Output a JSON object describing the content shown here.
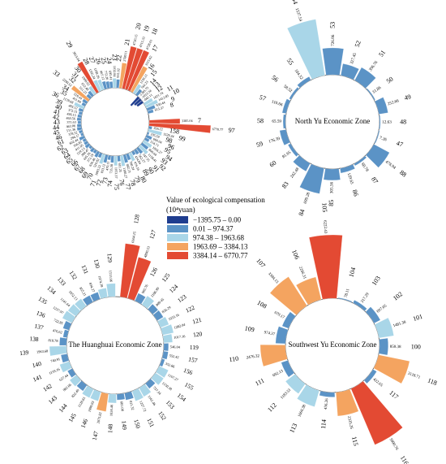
{
  "legend": {
    "title_line1": "Value of ecological compensation",
    "title_line2": "(10⁴yuan)",
    "classes": [
      {
        "label": "−1395.75 – 0.00",
        "color": "#1f3d8f"
      },
      {
        "label": "0.01 – 974.37",
        "color": "#5b93c6"
      },
      {
        "label": "974.38 – 1963.68",
        "color": "#a9d6e8"
      },
      {
        "label": "1963.69 – 3384.13",
        "color": "#f4a460"
      },
      {
        "label": "3384.14 – 6770.77",
        "color": "#e34a33"
      }
    ]
  },
  "chart_data": [
    {
      "type": "radial-bar",
      "zone": "",
      "rmax": 6770.77,
      "grid": false,
      "legend_position": "center",
      "bars": [
        {
          "id": "7",
          "value": 3385.04
        },
        {
          "id": "97",
          "value": 6770.77
        },
        {
          "id": "158",
          "value": 356.22
        },
        {
          "id": "99",
          "value": 1529.24
        },
        {
          "id": "98",
          "value": 195.59
        },
        {
          "id": "96",
          "value": 660.04
        },
        {
          "id": "95",
          "value": 514.71
        },
        {
          "id": "94",
          "value": 1056.27
        },
        {
          "id": "93",
          "value": 868.64
        },
        {
          "id": "92",
          "value": 1158.41
        },
        {
          "id": "91",
          "value": 747.35
        },
        {
          "id": "90",
          "value": 562.27
        },
        {
          "id": "89",
          "value": 434.84
        },
        {
          "id": "80",
          "value": 976.16
        },
        {
          "id": "79",
          "value": 700.24
        },
        {
          "id": "78",
          "value": 882.21
        },
        {
          "id": "77",
          "value": 1180.27
        },
        {
          "id": "76",
          "value": 611.25
        },
        {
          "id": "75",
          "value": 1053.37
        },
        {
          "id": "74",
          "value": 735.38
        },
        {
          "id": "73",
          "value": 470.11
        },
        {
          "id": "72",
          "value": 853.12
        },
        {
          "id": "71",
          "value": 1093.22
        },
        {
          "id": "70",
          "value": 520.82
        },
        {
          "id": "69",
          "value": 650.46
        },
        {
          "id": "68",
          "value": 372.19
        },
        {
          "id": "67",
          "value": 445.26
        },
        {
          "id": "66",
          "value": 288.47
        },
        {
          "id": "65",
          "value": 519.13
        },
        {
          "id": "64",
          "value": 411.05
        },
        {
          "id": "63",
          "value": 356.82
        },
        {
          "id": "62",
          "value": 602.44
        },
        {
          "id": "61",
          "value": 294.17
        },
        {
          "id": "46",
          "value": 378.52
        },
        {
          "id": "45",
          "value": 511.36
        },
        {
          "id": "44",
          "value": 463.06
        },
        {
          "id": "43",
          "value": 371.63
        },
        {
          "id": "42",
          "value": 463.56
        },
        {
          "id": "41",
          "value": 436.15
        },
        {
          "id": "40",
          "value": 372.31
        },
        {
          "id": "39",
          "value": 483.12
        },
        {
          "id": "36",
          "value": 1139.68
        },
        {
          "id": "35",
          "value": 411.94
        },
        {
          "id": "34",
          "value": 529.44
        },
        {
          "id": "33",
          "value": 2290.52
        },
        {
          "id": "32",
          "value": 511.25
        },
        {
          "id": "31",
          "value": 652.48
        },
        {
          "id": "30",
          "value": 1008.02
        },
        {
          "id": "29",
          "value": 3815.04
        },
        {
          "id": "28",
          "value": 1305.24
        },
        {
          "id": "27",
          "value": 1188.26
        },
        {
          "id": "26",
          "value": 867.12
        },
        {
          "id": "25",
          "value": 772.26
        },
        {
          "id": "24",
          "value": 695.41
        },
        {
          "id": "23",
          "value": 1032.84
        },
        {
          "id": "22",
          "value": 931.02
        },
        {
          "id": "21",
          "value": 2780.11
        },
        {
          "id": "20",
          "value": 4730.15
        },
        {
          "id": "19",
          "value": 4715.33
        },
        {
          "id": "18",
          "value": 4728.61
        },
        {
          "id": "17",
          "value": 3115.62
        },
        {
          "id": "16",
          "value": 1150.21
        },
        {
          "id": "15",
          "value": 760.23
        },
        {
          "id": "14",
          "value": -1395.75
        },
        {
          "id": "13",
          "value": -1012.34
        },
        {
          "id": "12",
          "value": -842.11
        },
        {
          "id": "11",
          "value": 1021.74
        },
        {
          "id": "10",
          "value": 1412.85
        },
        {
          "id": "9",
          "value": 930.44
        },
        {
          "id": "8",
          "value": 615.37
        }
      ]
    },
    {
      "type": "radial-bar",
      "zone": "North Yu Economic Zone",
      "rmax": 1537.54,
      "grid": false,
      "bars": [
        {
          "id": "47",
          "value": 7.26
        },
        {
          "id": "88",
          "value": 478.94
        },
        {
          "id": "87",
          "value": 60.78
        },
        {
          "id": "86",
          "value": 129.65
        },
        {
          "id": "85",
          "value": 305.56
        },
        {
          "id": "84",
          "value": 699.28
        },
        {
          "id": "83",
          "value": 242.48
        },
        {
          "id": "60",
          "value": 81.65
        },
        {
          "id": "59",
          "value": 176.39
        },
        {
          "id": "58",
          "value": 65.59
        },
        {
          "id": "57",
          "value": 110.66
        },
        {
          "id": "56",
          "value": 58.52
        },
        {
          "id": "55",
          "value": 104.32
        },
        {
          "id": "54",
          "value": 1537.54
        },
        {
          "id": "53",
          "value": 726.86
        },
        {
          "id": "52",
          "value": 327.45
        },
        {
          "id": "51",
          "value": 396.76
        },
        {
          "id": "50",
          "value": 31.86
        },
        {
          "id": "49",
          "value": 252.66
        },
        {
          "id": "48",
          "value": 12.63
        }
      ]
    },
    {
      "type": "radial-bar",
      "zone": "The Huanghuai Economic Zone",
      "rmax": 6164.15,
      "grid": false,
      "bars": [
        {
          "id": "128",
          "value": 6164.15
        },
        {
          "id": "127",
          "value": 4890.53
        },
        {
          "id": "126",
          "value": 965.76
        },
        {
          "id": "125",
          "value": 1186.99
        },
        {
          "id": "124",
          "value": 809.45
        },
        {
          "id": "123",
          "value": 826.29
        },
        {
          "id": "122",
          "value": 1033.16
        },
        {
          "id": "121",
          "value": 1282.04
        },
        {
          "id": "120",
          "value": 1017.16
        },
        {
          "id": "119",
          "value": 546.04
        },
        {
          "id": "157",
          "value": 552.42
        },
        {
          "id": "156",
          "value": 352.86
        },
        {
          "id": "155",
          "value": 1167.27
        },
        {
          "id": "154",
          "value": 1150.38
        },
        {
          "id": "153",
          "value": 737.34
        },
        {
          "id": "152",
          "value": 1161.46
        },
        {
          "id": "151",
          "value": 1227.72
        },
        {
          "id": "150",
          "value": 811.32
        },
        {
          "id": "149",
          "value": 681.08
        },
        {
          "id": "148",
          "value": 1024.46
        },
        {
          "id": "147",
          "value": 2075.82
        },
        {
          "id": "146",
          "value": 1099.03
        },
        {
          "id": "145",
          "value": 1120.61
        },
        {
          "id": "144",
          "value": 822.49
        },
        {
          "id": "143",
          "value": 982.66
        },
        {
          "id": "142",
          "value": 627.44
        },
        {
          "id": "141",
          "value": 1159.16
        },
        {
          "id": "140",
          "value": 740.91
        },
        {
          "id": "139",
          "value": 1963.68
        },
        {
          "id": "138",
          "value": 810.78
        },
        {
          "id": "137",
          "value": 476.62
        },
        {
          "id": "136",
          "value": 722.85
        },
        {
          "id": "135",
          "value": 1237.97
        },
        {
          "id": "134",
          "value": 1141.64
        },
        {
          "id": "133",
          "value": 1052.13
        },
        {
          "id": "132",
          "value": 855.21
        },
        {
          "id": "131",
          "value": 834.27
        },
        {
          "id": "130",
          "value": 1074.39
        },
        {
          "id": "129",
          "value": 1513.96
        }
      ]
    },
    {
      "type": "radial-bar",
      "zone": "Southwest Yu Economic Zone",
      "rmax": 6222.43,
      "grid": false,
      "bars": [
        {
          "id": "104",
          "value": 78.11
        },
        {
          "id": "103",
          "value": 317.29
        },
        {
          "id": "102",
          "value": 697.05
        },
        {
          "id": "101",
          "value": 1481.38
        },
        {
          "id": "100",
          "value": 859.38
        },
        {
          "id": "118",
          "value": 3118.71
        },
        {
          "id": "117",
          "value": 422.65
        },
        {
          "id": "116",
          "value": 5990.76
        },
        {
          "id": "115",
          "value": 2335.26
        },
        {
          "id": "114",
          "value": 456.26
        },
        {
          "id": "113",
          "value": 1660.38
        },
        {
          "id": "112",
          "value": 1183.51
        },
        {
          "id": "111",
          "value": 692.13
        },
        {
          "id": "110",
          "value": 2476.32
        },
        {
          "id": "109",
          "value": 974.37
        },
        {
          "id": "108",
          "value": 679.17
        },
        {
          "id": "107",
          "value": 3384.13
        },
        {
          "id": "106",
          "value": 2286.31
        },
        {
          "id": "105",
          "value": 6222.43
        }
      ]
    }
  ]
}
